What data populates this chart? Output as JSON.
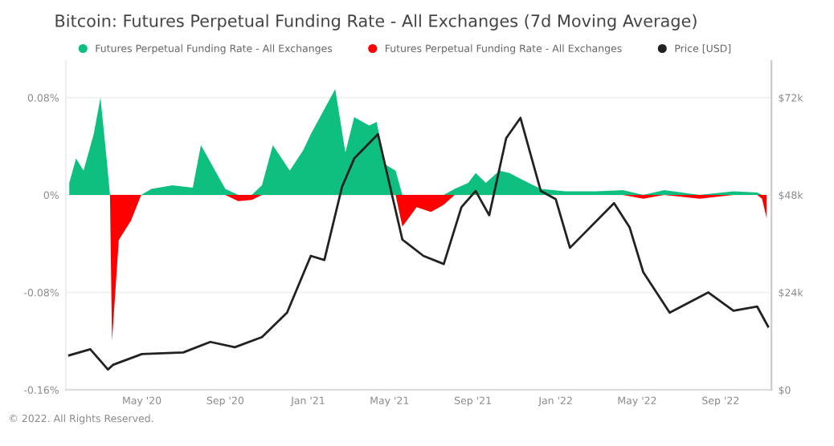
{
  "chart_data": {
    "type": "area",
    "title": "Bitcoin: Futures Perpetual Funding Rate - All Exchanges (7d Moving Average)",
    "x": [
      "2020-01-15",
      "2020-01-25",
      "2020-02-05",
      "2020-02-20",
      "2020-03-01",
      "2020-03-10",
      "2020-03-15",
      "2020-03-18",
      "2020-03-28",
      "2020-04-15",
      "2020-04-30",
      "2020-05-15",
      "2020-06-15",
      "2020-07-15",
      "2020-07-27",
      "2020-08-15",
      "2020-09-01",
      "2020-09-20",
      "2020-10-10",
      "2020-10-25",
      "2020-11-10",
      "2020-12-05",
      "2020-12-25",
      "2021-01-05",
      "2021-02-10",
      "2021-02-25",
      "2021-03-10",
      "2021-04-01",
      "2021-04-12",
      "2021-04-25",
      "2021-05-10",
      "2021-05-20",
      "2021-06-10",
      "2021-07-01",
      "2021-07-20",
      "2021-08-05",
      "2021-08-25",
      "2021-09-05",
      "2021-09-20",
      "2021-10-10",
      "2021-10-25",
      "2021-11-15",
      "2021-12-10",
      "2022-01-15",
      "2022-03-01",
      "2022-04-10",
      "2022-05-10",
      "2022-06-10",
      "2022-08-01",
      "2022-09-20",
      "2022-10-25",
      "2022-11-01",
      "2022-11-08"
    ],
    "series": [
      {
        "name": "Futures Perpetual Funding Rate - All Exchanges",
        "color": "#0fbf7f",
        "values": [
          0.01,
          0.03,
          0.02,
          0.05,
          0.08,
          0.03,
          0,
          0,
          0,
          0,
          0,
          0.005,
          0.008,
          0.006,
          0.041,
          0.022,
          0.005,
          0,
          0,
          0.008,
          0.041,
          0.02,
          0.037,
          0.05,
          0.087,
          0.035,
          0.064,
          0.057,
          0.06,
          0.025,
          0.02,
          0,
          0,
          0,
          0,
          0.005,
          0.01,
          0.018,
          0.01,
          0.02,
          0.018,
          0.012,
          0.005,
          0.003,
          0.003,
          0.004,
          0,
          0.004,
          0,
          0.003,
          0.002,
          0,
          0
        ]
      },
      {
        "name": "Futures Perpetual Funding Rate - All Exchanges",
        "color": "#ff0000",
        "values": [
          0,
          0,
          0,
          0,
          0,
          0,
          0,
          -0.12,
          -0.037,
          -0.021,
          0,
          0,
          0,
          0,
          0,
          0,
          0,
          -0.005,
          -0.004,
          0,
          0,
          0,
          0,
          0,
          0,
          0,
          0,
          0,
          0,
          0,
          0,
          -0.026,
          -0.01,
          -0.014,
          -0.008,
          0,
          0,
          0,
          0,
          0,
          0,
          0,
          0,
          0,
          0,
          0,
          -0.003,
          0,
          -0.003,
          0,
          0,
          -0.003,
          -0.019
        ]
      },
      {
        "name": "Price [USD]",
        "type": "line",
        "axis": "y2",
        "color": "#222222",
        "x": [
          "2020-01-15",
          "2020-02-15",
          "2020-03-12",
          "2020-03-20",
          "2020-05-01",
          "2020-07-01",
          "2020-08-10",
          "2020-09-15",
          "2020-10-25",
          "2020-12-01",
          "2021-01-05",
          "2021-01-25",
          "2021-02-20",
          "2021-03-10",
          "2021-04-14",
          "2021-05-20",
          "2021-06-20",
          "2021-07-20",
          "2021-08-15",
          "2021-09-05",
          "2021-09-25",
          "2021-10-20",
          "2021-11-10",
          "2021-12-10",
          "2022-01-01",
          "2022-01-22",
          "2022-03-28",
          "2022-04-20",
          "2022-05-10",
          "2022-06-18",
          "2022-08-14",
          "2022-09-20",
          "2022-10-25",
          "2022-11-10"
        ],
        "values": [
          8500,
          10000,
          5000,
          6200,
          8800,
          9200,
          11800,
          10500,
          13000,
          19000,
          33000,
          32000,
          50000,
          57000,
          63000,
          37000,
          33000,
          31000,
          45000,
          49000,
          43000,
          62000,
          67000,
          49000,
          47000,
          35000,
          46000,
          40000,
          29000,
          19000,
          24000,
          19500,
          20500,
          15600
        ]
      }
    ],
    "ylim": [
      -0.16,
      0.11
    ],
    "yticks": [
      {
        "value": -0.16,
        "label": "-0.16%"
      },
      {
        "value": -0.08,
        "label": "-0.08%"
      },
      {
        "value": 0,
        "label": "0%"
      },
      {
        "value": 0.08,
        "label": "0.08%"
      }
    ],
    "y2lim": [
      0,
      81000
    ],
    "y2ticks": [
      {
        "value": 0,
        "label": "$0"
      },
      {
        "value": 24000,
        "label": "$24k"
      },
      {
        "value": 48000,
        "label": "$48k"
      },
      {
        "value": 72000,
        "label": "$72k"
      }
    ],
    "xlim": [
      "2020-01-10",
      "2022-11-15"
    ],
    "xticks": [
      {
        "value": "2020-05-01",
        "label": "May '20"
      },
      {
        "value": "2020-09-01",
        "label": "Sep '20"
      },
      {
        "value": "2021-01-01",
        "label": "Jan '21"
      },
      {
        "value": "2021-05-01",
        "label": "May '21"
      },
      {
        "value": "2021-09-01",
        "label": "Sep '21"
      },
      {
        "value": "2022-01-01",
        "label": "Jan '22"
      },
      {
        "value": "2022-05-01",
        "label": "May '22"
      },
      {
        "value": "2022-09-01",
        "label": "Sep '22"
      }
    ],
    "grid": "y",
    "legend": "top left",
    "annotations": [
      "© 2022. All Rights Reserved."
    ]
  }
}
